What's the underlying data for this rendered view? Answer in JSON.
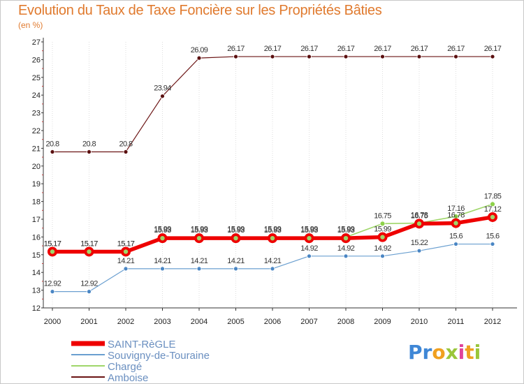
{
  "header": {
    "title": "Evolution du Taux de Taxe Foncière sur les Propriétés Bâties",
    "unit": "(en %)"
  },
  "chart_data": {
    "type": "line",
    "title": "Evolution du Taux de Taxe Foncière sur les Propriétés Bâties",
    "ylabel": "(en %)",
    "xlabel": "",
    "ylim": [
      12,
      27
    ],
    "yticks": [
      12,
      13,
      14,
      15,
      16,
      17,
      18,
      19,
      20,
      21,
      22,
      23,
      24,
      25,
      26,
      27
    ],
    "categories": [
      "2000",
      "2001",
      "2002",
      "2003",
      "2004",
      "2005",
      "2006",
      "2007",
      "2008",
      "2009",
      "2010",
      "2011",
      "2012"
    ],
    "grid": "vertical",
    "legend": "bottom-left",
    "series": [
      {
        "name": "Amboise",
        "color": "#6b1414",
        "values": [
          20.8,
          20.8,
          20.8,
          23.94,
          26.09,
          26.17,
          26.17,
          26.17,
          26.17,
          26.17,
          26.17,
          26.17,
          26.17
        ],
        "labels": [
          "20.8",
          "20.8",
          "20.8",
          "23.94",
          "26.09",
          "26.17",
          "26.17",
          "26.17",
          "26.17",
          "26.17",
          "26.17",
          "26.17",
          "26.17"
        ]
      },
      {
        "name": "Souvigny-de-Touraine",
        "color": "#6a9fd0",
        "values": [
          12.92,
          12.92,
          14.21,
          14.21,
          14.21,
          14.21,
          14.21,
          14.92,
          14.92,
          14.92,
          15.22,
          15.6,
          15.6
        ],
        "labels": [
          "12.92",
          "12.92",
          "14.21",
          "14.21",
          "14.21",
          "14.21",
          "14.21",
          "14.92",
          "14.92",
          "14.92",
          "15.22",
          "15.6",
          "15.6"
        ]
      },
      {
        "name": "Chargé",
        "color": "#9fd66a",
        "values": [
          15.17,
          15.17,
          15.17,
          15.99,
          15.99,
          15.99,
          15.99,
          15.99,
          15.99,
          16.75,
          16.78,
          17.16,
          17.85
        ],
        "labels": [
          "15.17",
          "15.17",
          "15.17",
          "15.99",
          "15.99",
          "15.99",
          "15.99",
          "15.99",
          "15.99",
          "16.75",
          "16.78",
          "17.16",
          "17.85"
        ]
      },
      {
        "name": "SAINT-RèGLE",
        "color": "#ee0000",
        "values": [
          15.17,
          15.17,
          15.17,
          15.93,
          15.93,
          15.93,
          15.93,
          15.93,
          15.93,
          15.99,
          16.75,
          16.78,
          17.12
        ],
        "labels": [
          "15.17",
          "15.17",
          "15.17",
          "15.93",
          "15.93",
          "15.93",
          "15.93",
          "15.93",
          "15.93",
          "15.99",
          "16.75",
          "16.78",
          "17.12"
        ]
      }
    ],
    "legend_entries": [
      {
        "name": "SAINT-RèGLE",
        "color": "#ee0000"
      },
      {
        "name": "Souvigny-de-Touraine",
        "color": "#6a9fd0"
      },
      {
        "name": "Chargé",
        "color": "#9fd66a"
      },
      {
        "name": "Amboise",
        "color": "#6b1414"
      }
    ]
  },
  "logo": {
    "letters": [
      "P",
      "r",
      "o",
      "x",
      "i",
      "t",
      "i"
    ],
    "colors": [
      "#3f87d6",
      "#3f87d6",
      "#f0a020",
      "#9ac63a",
      "#e0429a",
      "#f0a020",
      "#9ac63a"
    ]
  }
}
